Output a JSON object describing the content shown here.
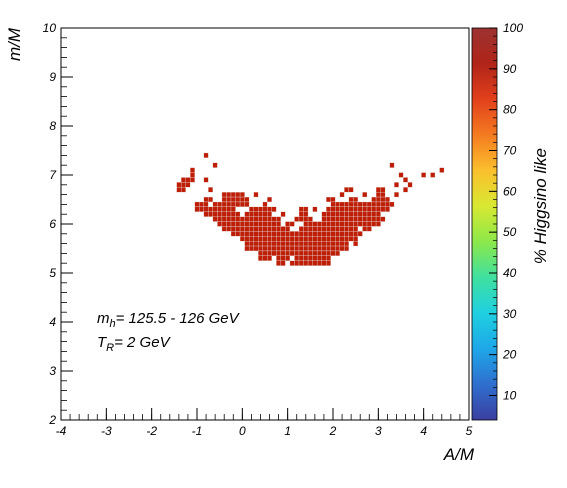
{
  "chart_data": {
    "type": "heatmap",
    "title": "",
    "xlabel": "A/M",
    "ylabel": "m/M",
    "zlabel": "% Higgsino like",
    "xlim": [
      -4,
      5
    ],
    "ylim": [
      2,
      10
    ],
    "zlim": [
      4,
      100
    ],
    "x_ticks": [
      "-4",
      "-3",
      "-2",
      "-1",
      "0",
      "1",
      "2",
      "3",
      "4",
      "5"
    ],
    "y_ticks": [
      "2",
      "3",
      "4",
      "5",
      "6",
      "7",
      "8",
      "9",
      "10"
    ],
    "z_ticks": [
      "10",
      "20",
      "30",
      "40",
      "50",
      "60",
      "70",
      "80",
      "90",
      "100"
    ],
    "grid": false,
    "bin_width_x": 0.1,
    "bin_width_y": 0.1,
    "z_value": 100,
    "annotations": [
      {
        "main": "m",
        "sub": "h",
        "rest": "= 125.5 - 126 GeV"
      },
      {
        "main": "T",
        "sub": "R",
        "rest": "= 2 GeV"
      }
    ],
    "rows": [
      {
        "y": 7.4,
        "x": [
          [
            -0.8,
            -0.8
          ]
        ]
      },
      {
        "y": 7.2,
        "x": [
          [
            -0.6,
            -0.6
          ],
          [
            3.3,
            3.3
          ]
        ]
      },
      {
        "y": 7.1,
        "x": [
          [
            -1.1,
            -1.1
          ],
          [
            4.4,
            4.4
          ]
        ]
      },
      {
        "y": 7.0,
        "x": [
          [
            -1.1,
            -1.1
          ],
          [
            3.5,
            3.5
          ],
          [
            4.0,
            4.0
          ],
          [
            4.2,
            4.2
          ]
        ]
      },
      {
        "y": 6.9,
        "x": [
          [
            -1.3,
            -1.1
          ],
          [
            -0.8,
            -0.8
          ],
          [
            3.6,
            3.6
          ]
        ]
      },
      {
        "y": 6.8,
        "x": [
          [
            -1.4,
            -1.2
          ],
          [
            3.4,
            3.4
          ],
          [
            3.7,
            3.7
          ]
        ]
      },
      {
        "y": 6.7,
        "x": [
          [
            -1.4,
            -1.3
          ],
          [
            -0.7,
            -0.7
          ],
          [
            2.3,
            2.4
          ],
          [
            3.0,
            3.1
          ],
          [
            3.6,
            3.6
          ]
        ]
      },
      {
        "y": 6.6,
        "x": [
          [
            -0.4,
            0.0
          ],
          [
            0.3,
            0.3
          ],
          [
            2.2,
            2.2
          ],
          [
            2.7,
            2.7
          ],
          [
            3.0,
            3.1
          ],
          [
            3.4,
            3.4
          ]
        ]
      },
      {
        "y": 6.5,
        "x": [
          [
            -0.8,
            -0.7
          ],
          [
            -0.4,
            0.1
          ],
          [
            0.6,
            0.6
          ],
          [
            1.9,
            2.0
          ],
          [
            2.4,
            2.5
          ],
          [
            2.9,
            3.2
          ]
        ]
      },
      {
        "y": 6.4,
        "x": [
          [
            -1.0,
            -0.8
          ],
          [
            -0.6,
            0.1
          ],
          [
            0.5,
            0.5
          ],
          [
            2.0,
            3.3
          ]
        ]
      },
      {
        "y": 6.3,
        "x": [
          [
            -1.0,
            -0.2
          ],
          [
            0.2,
            0.7
          ],
          [
            1.3,
            1.4
          ],
          [
            1.6,
            1.6
          ],
          [
            1.9,
            3.2
          ]
        ]
      },
      {
        "y": 6.2,
        "x": [
          [
            -0.8,
            -0.1
          ],
          [
            0.1,
            0.6
          ],
          [
            0.9,
            0.9
          ],
          [
            1.3,
            1.4
          ],
          [
            1.8,
            3.0
          ]
        ]
      },
      {
        "y": 6.1,
        "x": [
          [
            -0.6,
            0.8
          ],
          [
            1.2,
            1.5
          ],
          [
            1.8,
            3.1
          ]
        ]
      },
      {
        "y": 6.0,
        "x": [
          [
            -0.5,
            0.8
          ],
          [
            1.0,
            1.1
          ],
          [
            1.4,
            3.0
          ]
        ]
      },
      {
        "y": 5.9,
        "x": [
          [
            -0.4,
            1.0
          ],
          [
            1.3,
            2.5
          ],
          [
            2.7,
            2.8
          ]
        ]
      },
      {
        "y": 5.8,
        "x": [
          [
            -0.2,
            2.6
          ]
        ]
      },
      {
        "y": 5.7,
        "x": [
          [
            0.0,
            2.5
          ]
        ]
      },
      {
        "y": 5.6,
        "x": [
          [
            0.1,
            2.3
          ],
          [
            2.5,
            2.5
          ]
        ]
      },
      {
        "y": 5.5,
        "x": [
          [
            0.1,
            2.3
          ]
        ]
      },
      {
        "y": 5.4,
        "x": [
          [
            0.4,
            2.1
          ]
        ]
      },
      {
        "y": 5.3,
        "x": [
          [
            0.4,
            0.6
          ],
          [
            0.8,
            1.0
          ],
          [
            1.2,
            1.9
          ]
        ]
      },
      {
        "y": 5.2,
        "x": [
          [
            0.8,
            0.9
          ],
          [
            1.1,
            1.9
          ]
        ]
      }
    ]
  },
  "colors": {
    "cell": "#be1e06",
    "palette": [
      "#3a3fa0",
      "#2f6fce",
      "#1ea7e8",
      "#1fd0e0",
      "#3fe0a0",
      "#8ce84a",
      "#d8e832",
      "#fbc02d",
      "#f47b20",
      "#e2401c",
      "#b02419",
      "#9b3231"
    ]
  }
}
